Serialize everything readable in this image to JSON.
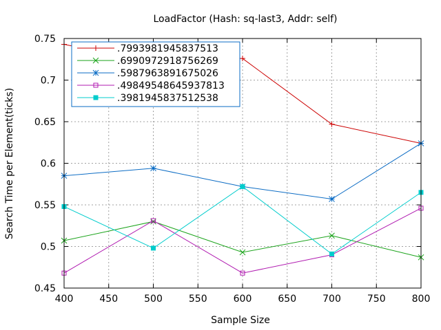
{
  "chart_data": {
    "type": "line",
    "title": "LoadFactor (Hash: sq-last3, Addr: self)",
    "xlabel": "Sample Size",
    "ylabel": "Search Time per Element(ticks)",
    "xlim": [
      400,
      800
    ],
    "ylim": [
      0.45,
      0.75
    ],
    "x_ticks": [
      "400",
      "450",
      "500",
      "550",
      "600",
      "650",
      "700",
      "750",
      "800"
    ],
    "y_ticks": [
      "0.45",
      "0.5",
      "0.55",
      "0.6",
      "0.65",
      "0.7",
      "0.75"
    ],
    "grid": true,
    "legend_position": "top-left",
    "x": [
      400,
      500,
      600,
      700,
      800
    ],
    "series": [
      {
        "name": ".7993981945837513",
        "color": "#cc0000",
        "marker": "plus",
        "values": [
          0.743,
          0.721,
          0.726,
          0.647,
          0.624
        ]
      },
      {
        "name": ".6990972918756269",
        "color": "#1aa31a",
        "marker": "cross",
        "values": [
          0.507,
          0.53,
          0.493,
          0.513,
          0.487
        ]
      },
      {
        "name": ".5987963891675026",
        "color": "#0a6bc4",
        "marker": "star",
        "values": [
          0.585,
          0.594,
          0.572,
          0.557,
          0.624
        ]
      },
      {
        "name": ".49849548645937813",
        "color": "#b01ab0",
        "marker": "square-open",
        "values": [
          0.468,
          0.531,
          0.468,
          0.49,
          0.546
        ]
      },
      {
        "name": ".3981945837512538",
        "color": "#00cccc",
        "marker": "square-filled",
        "values": [
          0.548,
          0.498,
          0.572,
          0.491,
          0.565
        ]
      }
    ]
  }
}
